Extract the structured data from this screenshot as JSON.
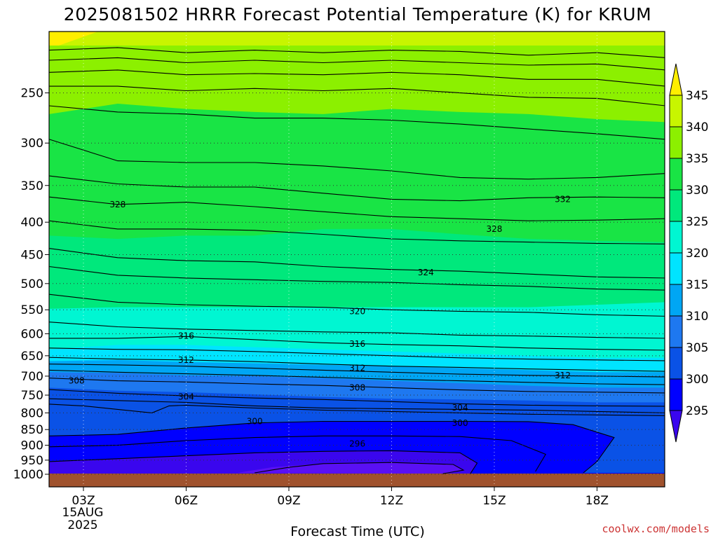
{
  "chart_data": {
    "type": "contour",
    "title": "2025081502 HRRR Forecast Potential Temperature (K) for KRUM",
    "xlabel": "Forecast Time (UTC)",
    "ylabel": "",
    "x_ticks": [
      "03Z",
      "06Z",
      "09Z",
      "12Z",
      "15Z",
      "18Z"
    ],
    "x_date_lines": [
      "15AUG",
      "2025"
    ],
    "xlim_hours": [
      2,
      20
    ],
    "y_ticks_hPa": [
      250,
      300,
      350,
      400,
      450,
      500,
      550,
      600,
      650,
      700,
      750,
      800,
      850,
      900,
      950,
      1000
    ],
    "ylim_hPa": [
      200,
      1010
    ],
    "y_scale": "log",
    "grid": true,
    "colorbar": {
      "labels": [
        295,
        300,
        305,
        310,
        315,
        320,
        325,
        330,
        335,
        340,
        345
      ],
      "colors": [
        "#3a06ee",
        "#0000ff",
        "#0a52e6",
        "#1e78f0",
        "#00a6f4",
        "#00e4ff",
        "#00f6d2",
        "#00e87c",
        "#19e445",
        "#8cf000",
        "#c8f500",
        "#ffee00"
      ]
    },
    "contour_labels": [
      {
        "value": "328",
        "time_h": 4.0,
        "p": 375
      },
      {
        "value": "332",
        "time_h": 17.0,
        "p": 368
      },
      {
        "value": "328",
        "time_h": 15.0,
        "p": 410
      },
      {
        "value": "324",
        "time_h": 13.0,
        "p": 480
      },
      {
        "value": "320",
        "time_h": 11.0,
        "p": 553
      },
      {
        "value": "316",
        "time_h": 6.0,
        "p": 605
      },
      {
        "value": "316",
        "time_h": 11.0,
        "p": 623
      },
      {
        "value": "312",
        "time_h": 6.0,
        "p": 660
      },
      {
        "value": "312",
        "time_h": 11.0,
        "p": 680
      },
      {
        "value": "312",
        "time_h": 17.0,
        "p": 698
      },
      {
        "value": "308",
        "time_h": 2.8,
        "p": 712
      },
      {
        "value": "308",
        "time_h": 11.0,
        "p": 730
      },
      {
        "value": "304",
        "time_h": 6.0,
        "p": 755
      },
      {
        "value": "304",
        "time_h": 14.0,
        "p": 785
      },
      {
        "value": "300",
        "time_h": 8.0,
        "p": 825
      },
      {
        "value": "300",
        "time_h": 14.0,
        "p": 830
      },
      {
        "value": "296",
        "time_h": 11.0,
        "p": 895
      }
    ],
    "fill_layers": [
      {
        "color": "#8cf000",
        "pts": [
          [
            2,
            0
          ],
          [
            20,
            0
          ]
        ]
      },
      {
        "color": "#19e445",
        "pts": [
          [
            2,
            270
          ],
          [
            4,
            260
          ],
          [
            6,
            265
          ],
          [
            8,
            268
          ],
          [
            10,
            270
          ],
          [
            12,
            265
          ],
          [
            14,
            268
          ],
          [
            16,
            270
          ],
          [
            18,
            275
          ],
          [
            20,
            278
          ]
        ]
      },
      {
        "color": "#00e87c",
        "pts": [
          [
            2,
            420
          ],
          [
            4,
            425
          ],
          [
            6,
            420
          ],
          [
            8,
            420
          ],
          [
            10,
            410
          ],
          [
            12,
            410
          ],
          [
            14,
            418
          ],
          [
            16,
            425
          ],
          [
            18,
            428
          ],
          [
            20,
            430
          ]
        ]
      },
      {
        "color": "#00f6d2",
        "pts": [
          [
            2,
            548
          ],
          [
            4,
            545
          ],
          [
            6,
            545
          ],
          [
            8,
            545
          ],
          [
            10,
            545
          ],
          [
            12,
            545
          ],
          [
            14,
            545
          ],
          [
            16,
            545
          ],
          [
            18,
            540
          ],
          [
            20,
            535
          ]
        ]
      },
      {
        "color": "#00e4ff",
        "pts": [
          [
            2,
            635
          ],
          [
            4,
            625
          ],
          [
            6,
            625
          ],
          [
            8,
            630
          ],
          [
            10,
            635
          ],
          [
            12,
            640
          ],
          [
            14,
            645
          ],
          [
            16,
            650
          ],
          [
            18,
            655
          ],
          [
            20,
            655
          ]
        ]
      },
      {
        "color": "#00a6f4",
        "pts": [
          [
            2,
            663
          ],
          [
            4,
            660
          ],
          [
            6,
            665
          ],
          [
            8,
            668
          ],
          [
            10,
            672
          ],
          [
            12,
            675
          ],
          [
            14,
            680
          ],
          [
            16,
            685
          ],
          [
            18,
            690
          ],
          [
            20,
            690
          ]
        ]
      },
      {
        "color": "#1e78f0",
        "pts": [
          [
            2,
            690
          ],
          [
            4,
            692
          ],
          [
            6,
            698
          ],
          [
            8,
            700
          ],
          [
            10,
            705
          ],
          [
            12,
            712
          ],
          [
            14,
            718
          ],
          [
            16,
            725
          ],
          [
            18,
            730
          ],
          [
            20,
            730
          ]
        ]
      },
      {
        "color": "#0a52e6",
        "pts": [
          [
            2,
            730
          ],
          [
            4,
            738
          ],
          [
            6,
            742
          ],
          [
            8,
            748
          ],
          [
            10,
            755
          ],
          [
            12,
            760
          ],
          [
            14,
            762
          ],
          [
            16,
            765
          ],
          [
            18,
            770
          ],
          [
            20,
            770
          ]
        ]
      }
    ]
  },
  "credit": "coolwx.com/models"
}
